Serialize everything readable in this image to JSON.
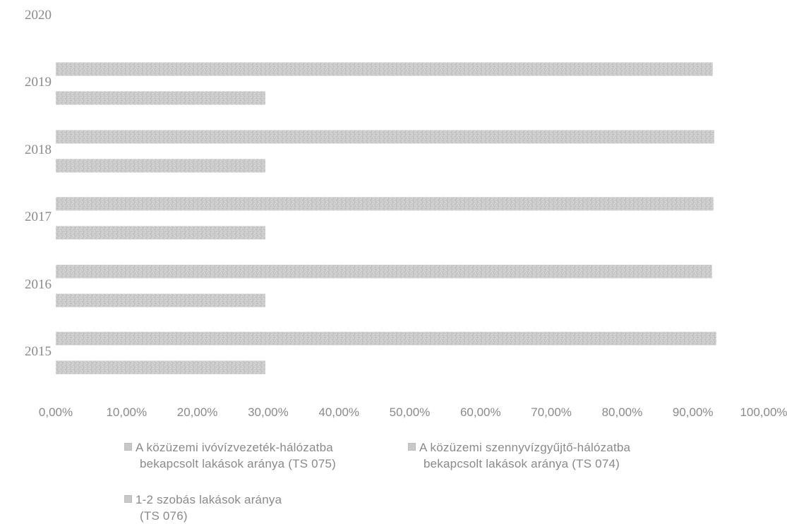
{
  "chart_data": {
    "type": "bar",
    "orientation": "horizontal",
    "categories": [
      "2015",
      "2016",
      "2017",
      "2018",
      "2019",
      "2020"
    ],
    "series": [
      {
        "name": "A közüzemi szennyvízgyűjtő-hálózatba bekapcsolt lakások aránya (TS 074)",
        "values": [
          null,
          null,
          null,
          null,
          null,
          null
        ]
      },
      {
        "name": "A közüzemi ivóvízvezeték-hálózatba bekapcsolt lakások aránya (TS 075)",
        "values": [
          93.3,
          92.7,
          92.9,
          93.0,
          92.8,
          null
        ]
      },
      {
        "name": "1-2 szobás lakások aránya (TS 076)",
        "values": [
          29.6,
          29.6,
          29.6,
          29.6,
          29.6,
          null
        ]
      }
    ],
    "x_ticks": [
      "0,00%",
      "10,00%",
      "20,00%",
      "30,00%",
      "40,00%",
      "50,00%",
      "60,00%",
      "70,00%",
      "80,00%",
      "90,00%",
      "100,00%"
    ],
    "xlim": [
      0,
      100
    ],
    "grid": false,
    "legend_position": "bottom",
    "bar_color": "#c8c8c8",
    "text_color": "#8a8a8a"
  },
  "legend": {
    "item1_line1": "A közüzemi ivóvízvezeték-hálózatba",
    "item1_line2": "bekapcsolt lakások aránya (TS 075)",
    "item2_line1": "A közüzemi szennyvízgyűjtő-hálózatba",
    "item2_line2": "bekapcsolt lakások aránya (TS 074)",
    "item3_line1": "1-2 szobás lakások aránya",
    "item3_line2": "(TS 076)"
  }
}
